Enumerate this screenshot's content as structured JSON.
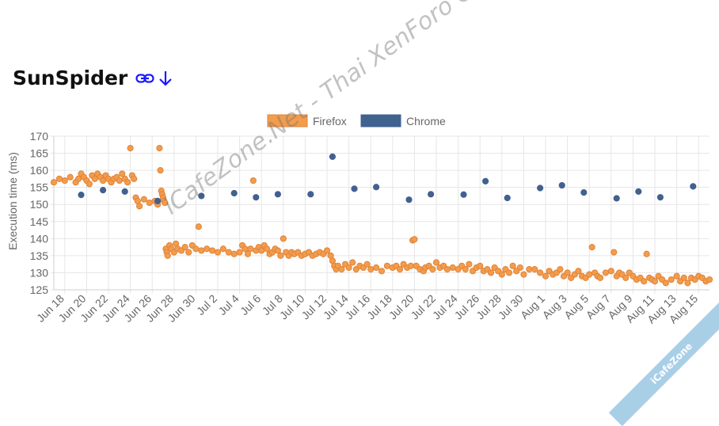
{
  "page": {
    "title": "SunSpider",
    "link_icon": "link-icon",
    "download_icon": "arrow-down-icon"
  },
  "watermark": "iCafeZone.Net - Thai XenForo Community",
  "ribbon": "iCafeZone",
  "colors": {
    "firefox": "#f39c4b",
    "firefox_border": "#e0843a",
    "chrome": "#41618f",
    "link": "#1a1aff"
  },
  "chart_data": {
    "type": "scatter",
    "xlabel": "",
    "ylabel": "Execution time (ms)",
    "ylim": [
      125,
      170
    ],
    "yticks": [
      125,
      130,
      135,
      140,
      145,
      150,
      155,
      160,
      165,
      170
    ],
    "xlim": [
      "2018-06-17",
      "2018-08-16"
    ],
    "xticks": [
      "Jun 18",
      "Jun 20",
      "Jun 22",
      "Jun 24",
      "Jun 26",
      "Jun 28",
      "Jun 30",
      "Jul 2",
      "Jul 4",
      "Jul 6",
      "Jul 8",
      "Jul 10",
      "Jul 12",
      "Jul 14",
      "Jul 16",
      "Jul 18",
      "Jul 20",
      "Jul 22",
      "Jul 24",
      "Jul 26",
      "Jul 28",
      "Jul 30",
      "Aug 1",
      "Aug 3",
      "Aug 5",
      "Aug 7",
      "Aug 9",
      "Aug 11",
      "Aug 13",
      "Aug 15"
    ],
    "grid": true,
    "legend": "top-center",
    "series": [
      {
        "name": "Firefox",
        "points": [
          [
            "2018-06-17",
            156.5
          ],
          [
            "2018-06-17 12:00",
            157.5
          ],
          [
            "2018-06-18",
            157
          ],
          [
            "2018-06-18 12:00",
            158
          ],
          [
            "2018-06-19",
            156.5
          ],
          [
            "2018-06-19 06:00",
            157.5
          ],
          [
            "2018-06-19 12:00",
            159
          ],
          [
            "2018-06-19 18:00",
            158
          ],
          [
            "2018-06-20",
            157
          ],
          [
            "2018-06-20 06:00",
            156
          ],
          [
            "2018-06-20 12:00",
            158.5
          ],
          [
            "2018-06-20 18:00",
            157.5
          ],
          [
            "2018-06-21",
            159
          ],
          [
            "2018-06-21 06:00",
            158
          ],
          [
            "2018-06-21 12:00",
            157
          ],
          [
            "2018-06-21 18:00",
            158.5
          ],
          [
            "2018-06-22",
            157.5
          ],
          [
            "2018-06-22 06:00",
            156.5
          ],
          [
            "2018-06-22 12:00",
            157.5
          ],
          [
            "2018-06-22 18:00",
            158
          ],
          [
            "2018-06-23",
            157
          ],
          [
            "2018-06-23 06:00",
            159
          ],
          [
            "2018-06-23 12:00",
            157.5
          ],
          [
            "2018-06-23 18:00",
            156.5
          ],
          [
            "2018-06-24",
            166.5
          ],
          [
            "2018-06-24 04:00",
            158.5
          ],
          [
            "2018-06-24 08:00",
            157.5
          ],
          [
            "2018-06-24 12:00",
            152
          ],
          [
            "2018-06-24 16:00",
            151
          ],
          [
            "2018-06-24 20:00",
            149.5
          ],
          [
            "2018-06-25 06:00",
            151.5
          ],
          [
            "2018-06-25 18:00",
            150.5
          ],
          [
            "2018-06-26 06:00",
            151
          ],
          [
            "2018-06-26 12:00",
            150
          ],
          [
            "2018-06-26 16:00",
            166.5
          ],
          [
            "2018-06-26 18:00",
            160
          ],
          [
            "2018-06-26 20:00",
            154
          ],
          [
            "2018-06-26 22:00",
            153
          ],
          [
            "2018-06-27",
            152
          ],
          [
            "2018-06-27 02:00",
            151
          ],
          [
            "2018-06-27 04:00",
            150.5
          ],
          [
            "2018-06-27 06:00",
            137
          ],
          [
            "2018-06-27 08:00",
            136
          ],
          [
            "2018-06-27 10:00",
            135
          ],
          [
            "2018-06-27 14:00",
            138
          ],
          [
            "2018-06-27 18:00",
            137
          ],
          [
            "2018-06-28",
            136
          ],
          [
            "2018-06-28 04:00",
            138.5
          ],
          [
            "2018-06-28 08:00",
            137
          ],
          [
            "2018-06-28 16:00",
            136.5
          ],
          [
            "2018-06-29",
            137.5
          ],
          [
            "2018-06-29 08:00",
            136
          ],
          [
            "2018-06-29 16:00",
            138
          ],
          [
            "2018-06-30",
            137
          ],
          [
            "2018-06-30 06:00",
            143.5
          ],
          [
            "2018-06-30 12:00",
            136.5
          ],
          [
            "2018-07-01",
            137
          ],
          [
            "2018-07-01 12:00",
            136.5
          ],
          [
            "2018-07-02",
            136
          ],
          [
            "2018-07-02 12:00",
            137
          ],
          [
            "2018-07-03",
            136
          ],
          [
            "2018-07-03 12:00",
            135.5
          ],
          [
            "2018-07-04",
            136
          ],
          [
            "2018-07-04 06:00",
            138
          ],
          [
            "2018-07-04 12:00",
            137
          ],
          [
            "2018-07-04 18:00",
            135.5
          ],
          [
            "2018-07-05",
            137
          ],
          [
            "2018-07-05 06:00",
            157
          ],
          [
            "2018-07-05 12:00",
            136.5
          ],
          [
            "2018-07-05 18:00",
            137.5
          ],
          [
            "2018-07-06",
            136.5
          ],
          [
            "2018-07-06 06:00",
            138
          ],
          [
            "2018-07-06 12:00",
            137
          ],
          [
            "2018-07-06 18:00",
            135.5
          ],
          [
            "2018-07-07",
            136
          ],
          [
            "2018-07-07 06:00",
            137
          ],
          [
            "2018-07-07 12:00",
            136.5
          ],
          [
            "2018-07-07 18:00",
            135
          ],
          [
            "2018-07-08",
            140
          ],
          [
            "2018-07-08 06:00",
            136
          ],
          [
            "2018-07-08 12:00",
            135
          ],
          [
            "2018-07-08 18:00",
            136
          ],
          [
            "2018-07-09",
            135.5
          ],
          [
            "2018-07-09 08:00",
            136
          ],
          [
            "2018-07-09 16:00",
            135
          ],
          [
            "2018-07-10",
            135.5
          ],
          [
            "2018-07-10 08:00",
            136
          ],
          [
            "2018-07-10 16:00",
            135
          ],
          [
            "2018-07-11",
            135.5
          ],
          [
            "2018-07-11 08:00",
            136
          ],
          [
            "2018-07-11 16:00",
            135.5
          ],
          [
            "2018-07-12",
            136.5
          ],
          [
            "2018-07-12 08:00",
            135
          ],
          [
            "2018-07-12 12:00",
            133.5
          ],
          [
            "2018-07-12 16:00",
            132
          ],
          [
            "2018-07-12 20:00",
            131
          ],
          [
            "2018-07-13",
            132
          ],
          [
            "2018-07-13 08:00",
            131
          ],
          [
            "2018-07-13 16:00",
            132.5
          ],
          [
            "2018-07-14",
            131.5
          ],
          [
            "2018-07-14 08:00",
            133
          ],
          [
            "2018-07-14 16:00",
            131
          ],
          [
            "2018-07-15",
            132
          ],
          [
            "2018-07-15 08:00",
            131.5
          ],
          [
            "2018-07-15 16:00",
            132.5
          ],
          [
            "2018-07-16",
            131
          ],
          [
            "2018-07-16 12:00",
            131.5
          ],
          [
            "2018-07-17",
            130.5
          ],
          [
            "2018-07-17 12:00",
            132
          ],
          [
            "2018-07-18",
            131.5
          ],
          [
            "2018-07-18 08:00",
            132
          ],
          [
            "2018-07-18 16:00",
            131
          ],
          [
            "2018-07-19",
            132.5
          ],
          [
            "2018-07-19 08:00",
            131.5
          ],
          [
            "2018-07-19 16:00",
            132
          ],
          [
            "2018-07-19 20:00",
            139.5
          ],
          [
            "2018-07-20",
            139.8
          ],
          [
            "2018-07-20 04:00",
            132
          ],
          [
            "2018-07-20 12:00",
            131
          ],
          [
            "2018-07-20 20:00",
            130.5
          ],
          [
            "2018-07-21",
            131.5
          ],
          [
            "2018-07-21 08:00",
            132
          ],
          [
            "2018-07-21 16:00",
            131
          ],
          [
            "2018-07-22",
            133
          ],
          [
            "2018-07-22 08:00",
            131.5
          ],
          [
            "2018-07-22 16:00",
            132
          ],
          [
            "2018-07-23",
            131
          ],
          [
            "2018-07-23 12:00",
            131.5
          ],
          [
            "2018-07-24",
            131
          ],
          [
            "2018-07-24 08:00",
            132
          ],
          [
            "2018-07-24 16:00",
            131
          ],
          [
            "2018-07-25",
            132.5
          ],
          [
            "2018-07-25 08:00",
            130.5
          ],
          [
            "2018-07-25 16:00",
            131.5
          ],
          [
            "2018-07-26",
            132
          ],
          [
            "2018-07-26 08:00",
            130.5
          ],
          [
            "2018-07-26 16:00",
            131
          ],
          [
            "2018-07-27",
            130
          ],
          [
            "2018-07-27 08:00",
            131.5
          ],
          [
            "2018-07-27 16:00",
            130.5
          ],
          [
            "2018-07-28",
            129.5
          ],
          [
            "2018-07-28 08:00",
            131
          ],
          [
            "2018-07-28 16:00",
            130
          ],
          [
            "2018-07-29",
            132
          ],
          [
            "2018-07-29 08:00",
            130.5
          ],
          [
            "2018-07-29 16:00",
            131.5
          ],
          [
            "2018-07-30",
            129.5
          ],
          [
            "2018-07-30 12:00",
            131
          ],
          [
            "2018-07-31",
            131
          ],
          [
            "2018-07-31 12:00",
            130
          ],
          [
            "2018-08-01",
            129
          ],
          [
            "2018-08-01 08:00",
            130.5
          ],
          [
            "2018-08-01 16:00",
            129.5
          ],
          [
            "2018-08-02",
            130
          ],
          [
            "2018-08-02 08:00",
            131
          ],
          [
            "2018-08-02 16:00",
            129
          ],
          [
            "2018-08-03",
            130
          ],
          [
            "2018-08-03 08:00",
            128.5
          ],
          [
            "2018-08-03 16:00",
            129.5
          ],
          [
            "2018-08-04",
            130.5
          ],
          [
            "2018-08-04 08:00",
            129
          ],
          [
            "2018-08-04 16:00",
            128.5
          ],
          [
            "2018-08-05",
            129.5
          ],
          [
            "2018-08-05 06:00",
            137.5
          ],
          [
            "2018-08-05 12:00",
            130
          ],
          [
            "2018-08-05 18:00",
            129
          ],
          [
            "2018-08-06",
            128.5
          ],
          [
            "2018-08-06 12:00",
            130
          ],
          [
            "2018-08-07",
            130.5
          ],
          [
            "2018-08-07 06:00",
            136
          ],
          [
            "2018-08-07 12:00",
            129
          ],
          [
            "2018-08-07 18:00",
            130
          ],
          [
            "2018-08-08",
            129.5
          ],
          [
            "2018-08-08 08:00",
            128.5
          ],
          [
            "2018-08-08 16:00",
            130
          ],
          [
            "2018-08-09",
            129
          ],
          [
            "2018-08-09 08:00",
            128
          ],
          [
            "2018-08-09 16:00",
            128.5
          ],
          [
            "2018-08-10",
            127.5
          ],
          [
            "2018-08-10 06:00",
            135.5
          ],
          [
            "2018-08-10 12:00",
            128.5
          ],
          [
            "2018-08-10 18:00",
            128
          ],
          [
            "2018-08-11",
            127.5
          ],
          [
            "2018-08-11 08:00",
            129
          ],
          [
            "2018-08-11 16:00",
            128
          ],
          [
            "2018-08-12",
            127
          ],
          [
            "2018-08-12 12:00",
            128
          ],
          [
            "2018-08-13",
            129
          ],
          [
            "2018-08-13 08:00",
            127.5
          ],
          [
            "2018-08-13 16:00",
            128.5
          ],
          [
            "2018-08-14",
            127
          ],
          [
            "2018-08-14 08:00",
            128.5
          ],
          [
            "2018-08-14 16:00",
            128
          ],
          [
            "2018-08-15",
            129
          ],
          [
            "2018-08-15 08:00",
            128.5
          ],
          [
            "2018-08-15 16:00",
            127.5
          ],
          [
            "2018-08-16",
            128
          ]
        ]
      },
      {
        "name": "Chrome",
        "points": [
          [
            "2018-06-19 12:00",
            152.8
          ],
          [
            "2018-06-21 12:00",
            154.2
          ],
          [
            "2018-06-23 12:00",
            153.8
          ],
          [
            "2018-06-26 12:00",
            151
          ],
          [
            "2018-06-30 12:00",
            152.5
          ],
          [
            "2018-07-03 12:00",
            153.3
          ],
          [
            "2018-07-05 12:00",
            152.1
          ],
          [
            "2018-07-07 12:00",
            153
          ],
          [
            "2018-07-10 12:00",
            153
          ],
          [
            "2018-07-12 12:00",
            164
          ],
          [
            "2018-07-14 12:00",
            154.6
          ],
          [
            "2018-07-16 12:00",
            155.1
          ],
          [
            "2018-07-19 12:00",
            151.4
          ],
          [
            "2018-07-21 12:00",
            153
          ],
          [
            "2018-07-24 12:00",
            152.9
          ],
          [
            "2018-07-26 12:00",
            156.8
          ],
          [
            "2018-07-28 12:00",
            151.9
          ],
          [
            "2018-07-31 12:00",
            154.8
          ],
          [
            "2018-08-02 12:00",
            155.6
          ],
          [
            "2018-08-04 12:00",
            153.5
          ],
          [
            "2018-08-07 12:00",
            151.8
          ],
          [
            "2018-08-09 12:00",
            153.8
          ],
          [
            "2018-08-11 12:00",
            152.1
          ],
          [
            "2018-08-14 12:00",
            155.3
          ]
        ]
      }
    ]
  }
}
